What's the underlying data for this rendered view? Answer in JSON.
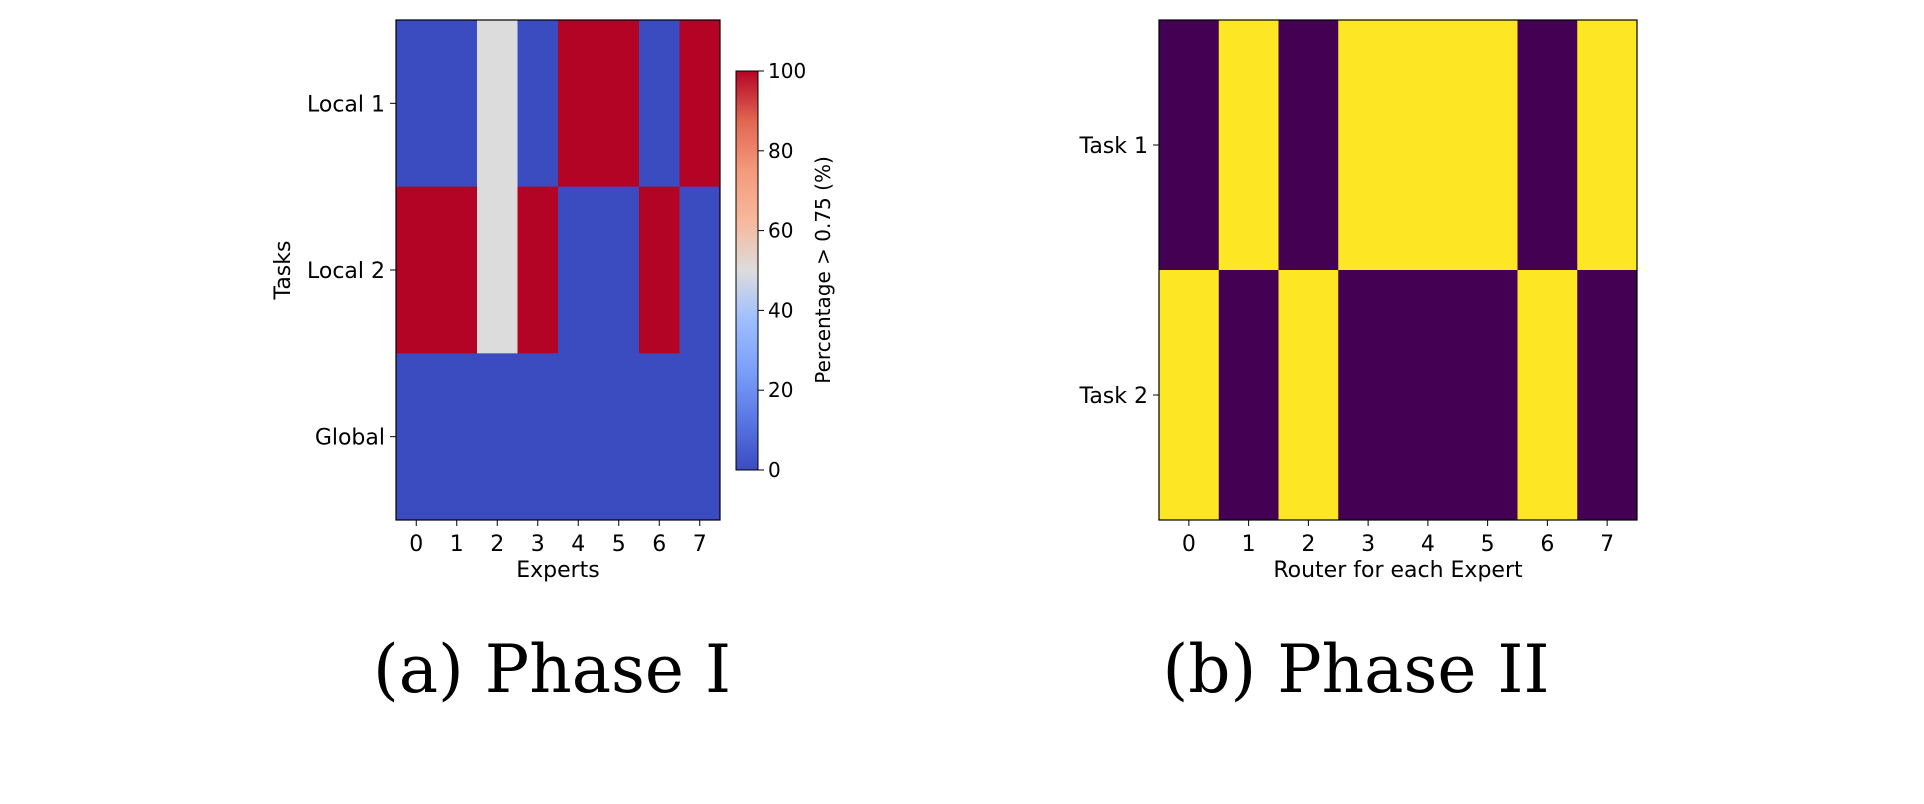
{
  "chart_data": [
    {
      "type": "heatmap",
      "caption": "(a) Phase I",
      "xlabel": "Experts",
      "ylabel": "Tasks",
      "x_ticks": [
        "0",
        "1",
        "2",
        "3",
        "4",
        "5",
        "6",
        "7"
      ],
      "y_ticks": [
        "Local 1",
        "Local 2",
        "Global"
      ],
      "values": [
        [
          0,
          0,
          50,
          0,
          100,
          100,
          0,
          100
        ],
        [
          100,
          100,
          50,
          100,
          0,
          0,
          100,
          0
        ],
        [
          0,
          0,
          0,
          0,
          0,
          0,
          0,
          0
        ]
      ],
      "colormap": "coolwarm",
      "colorbar": {
        "label": "Percentage > 0.75 (%)",
        "range": [
          0,
          100
        ],
        "ticks": [
          "0",
          "20",
          "40",
          "60",
          "80",
          "100"
        ]
      }
    },
    {
      "type": "heatmap",
      "caption": "(b) Phase II",
      "xlabel": "Router for each Expert",
      "ylabel": "",
      "x_ticks": [
        "0",
        "1",
        "2",
        "3",
        "4",
        "5",
        "6",
        "7"
      ],
      "y_ticks": [
        "Task 1",
        "Task 2"
      ],
      "values": [
        [
          0,
          1,
          0,
          1,
          1,
          1,
          0,
          1
        ],
        [
          1,
          0,
          1,
          0,
          0,
          0,
          1,
          0
        ]
      ],
      "colormap": "viridis",
      "colors": {
        "low": "#440154",
        "high": "#fde725"
      }
    }
  ]
}
